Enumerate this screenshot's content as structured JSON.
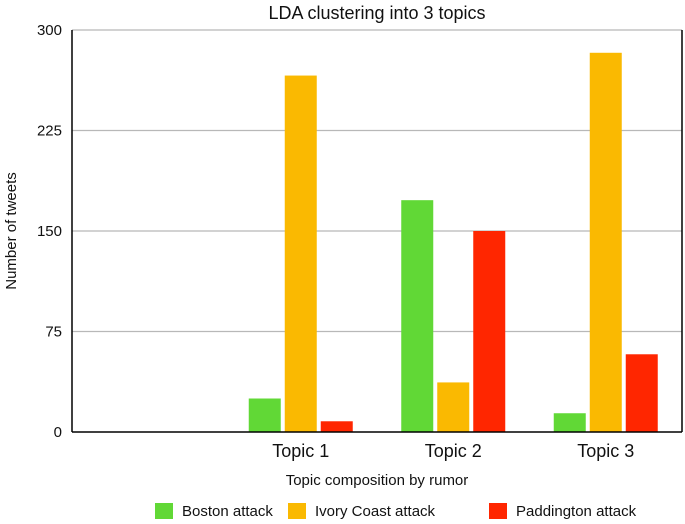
{
  "chart_data": {
    "type": "bar",
    "title": "LDA clustering into 3 topics",
    "xlabel": "Topic composition by rumor",
    "ylabel": "Number of tweets",
    "categories": [
      "",
      "Topic 1",
      "Topic 2",
      "Topic 3"
    ],
    "ylim": [
      0,
      300
    ],
    "yticks": [
      0,
      75,
      150,
      225,
      300
    ],
    "grid": true,
    "legend_position": "bottom",
    "series": [
      {
        "name": "Boston attack",
        "color": "#61d836",
        "values": [
          0,
          25,
          173,
          14
        ]
      },
      {
        "name": "Ivory Coast attack",
        "color": "#fab901",
        "values": [
          0,
          266,
          37,
          283
        ]
      },
      {
        "name": "Paddington attack",
        "color": "#ff2600",
        "values": [
          0,
          8,
          150,
          58
        ]
      }
    ]
  }
}
